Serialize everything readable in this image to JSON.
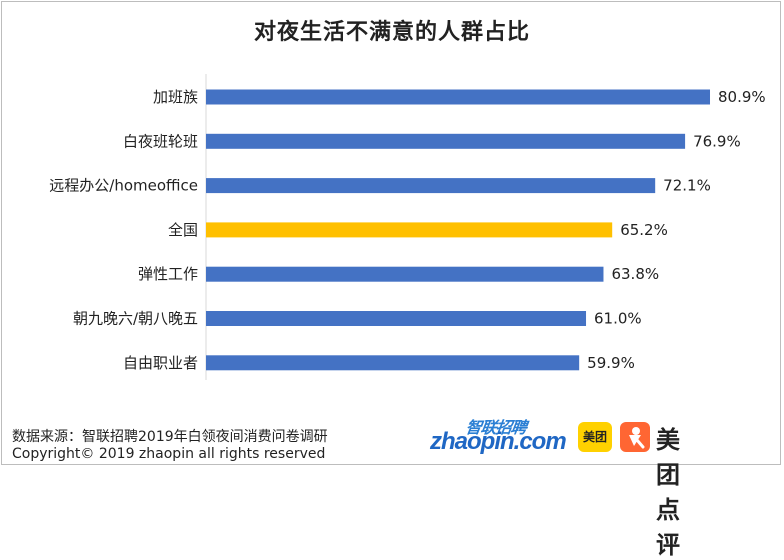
{
  "title": "对夜生活不满意的人群占比",
  "footer": {
    "source": "数据来源：智联招聘2019年白领夜间消费问卷调研",
    "copyright": "Copyright© 2019 zhaopin all rights reserved"
  },
  "logos": {
    "zhaopin_cn": "智联招聘",
    "zhaopin_en": "zhaopin.com",
    "meituan_small": "美团",
    "meituan_dianping": "美团点评"
  },
  "colors": {
    "bar_default": "#4472c4",
    "bar_highlight": "#ffc000",
    "axis": "#d9d9d9"
  },
  "chart_data": {
    "type": "bar",
    "orientation": "horizontal",
    "title": "对夜生活不满意的人群占比",
    "categories": [
      "加班族",
      "白夜班轮班",
      "远程办公/homeoffice",
      "全国",
      "弹性工作",
      "朝九晚六/朝八晚五",
      "自由职业者"
    ],
    "values": [
      80.9,
      76.9,
      72.1,
      65.2,
      63.8,
      61.0,
      59.9
    ],
    "labels": [
      "80.9%",
      "76.9%",
      "72.1%",
      "65.2%",
      "63.8%",
      "61.0%",
      "59.9%"
    ],
    "highlight": "全国",
    "xlim": [
      0,
      100
    ],
    "grid": false,
    "legend": "none"
  }
}
